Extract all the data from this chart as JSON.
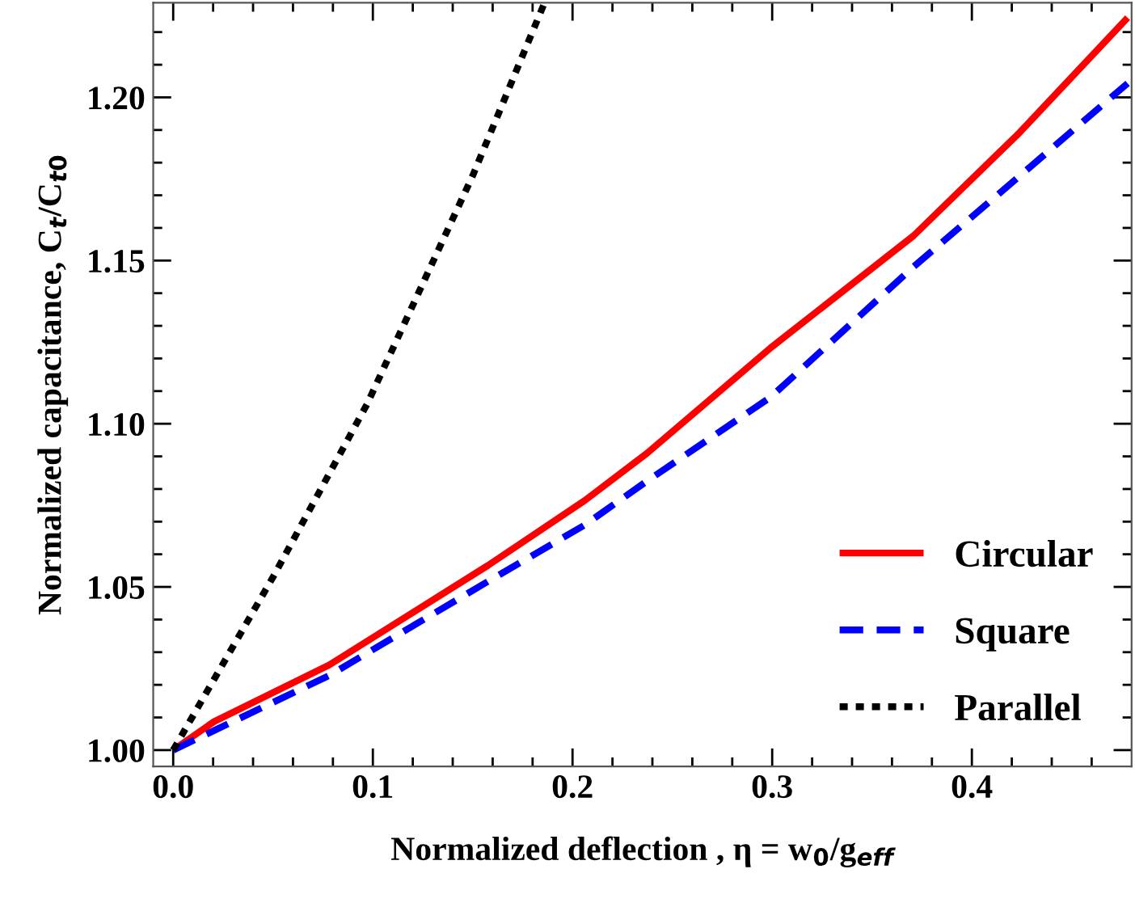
{
  "chart_data": {
    "type": "line",
    "xlabel": "Normalized deflection , η = w$_{0}$/g$_{eff}$",
    "ylabel": "Normalized capacitance, C$_{t}$/C$_{t0}$",
    "xlim": [
      -0.01,
      0.48
    ],
    "ylim": [
      0.995,
      1.229
    ],
    "xticks": [
      {
        "value": 0.0,
        "label": "0.0"
      },
      {
        "value": 0.1,
        "label": "0.1"
      },
      {
        "value": 0.2,
        "label": "0.2"
      },
      {
        "value": 0.3,
        "label": "0.3"
      },
      {
        "value": 0.4,
        "label": "0.4"
      },
      {
        "value": 0.02,
        "label": null
      },
      {
        "value": 0.04,
        "label": null
      },
      {
        "value": 0.06,
        "label": null
      },
      {
        "value": 0.08,
        "label": null
      },
      {
        "value": 0.12,
        "label": null
      },
      {
        "value": 0.14,
        "label": null
      },
      {
        "value": 0.16,
        "label": null
      },
      {
        "value": 0.18,
        "label": null
      },
      {
        "value": 0.22,
        "label": null
      },
      {
        "value": 0.24,
        "label": null
      },
      {
        "value": 0.26,
        "label": null
      },
      {
        "value": 0.28,
        "label": null
      },
      {
        "value": 0.32,
        "label": null
      },
      {
        "value": 0.34,
        "label": null
      },
      {
        "value": 0.36,
        "label": null
      },
      {
        "value": 0.38,
        "label": null
      },
      {
        "value": 0.42,
        "label": null
      },
      {
        "value": 0.44,
        "label": null
      },
      {
        "value": 0.46,
        "label": null
      }
    ],
    "yticks": [
      {
        "value": 1.0,
        "label": "1.00"
      },
      {
        "value": 1.05,
        "label": "1.05"
      },
      {
        "value": 1.1,
        "label": "1.10"
      },
      {
        "value": 1.15,
        "label": "1.15"
      },
      {
        "value": 1.2,
        "label": "1.20"
      },
      {
        "value": 1.01,
        "label": null
      },
      {
        "value": 1.02,
        "label": null
      },
      {
        "value": 1.03,
        "label": null
      },
      {
        "value": 1.04,
        "label": null
      },
      {
        "value": 1.06,
        "label": null
      },
      {
        "value": 1.07,
        "label": null
      },
      {
        "value": 1.08,
        "label": null
      },
      {
        "value": 1.09,
        "label": null
      },
      {
        "value": 1.11,
        "label": null
      },
      {
        "value": 1.12,
        "label": null
      },
      {
        "value": 1.13,
        "label": null
      },
      {
        "value": 1.14,
        "label": null
      },
      {
        "value": 1.16,
        "label": null
      },
      {
        "value": 1.17,
        "label": null
      },
      {
        "value": 1.18,
        "label": null
      },
      {
        "value": 1.19,
        "label": null
      },
      {
        "value": 1.21,
        "label": null
      },
      {
        "value": 1.22,
        "label": null
      }
    ],
    "grid": false,
    "legend": "bottom right",
    "series": [
      {
        "name": "Circular",
        "color": "#ff0000",
        "line_style": "solid",
        "x": [
          0,
          0.0204,
          0.0782,
          0.1577,
          0.2062,
          0.2372,
          0.2993,
          0.3708,
          0.4237,
          0.478
        ],
        "values": [
          1.0,
          1.0087,
          1.0261,
          1.0566,
          1.0765,
          1.0909,
          1.1233,
          1.1576,
          1.1891,
          1.2244
        ]
      },
      {
        "name": "Square",
        "color": "#0000ff",
        "line_style": "dashed",
        "x": [
          0,
          0.078,
          0.1577,
          0.2062,
          0.2372,
          0.2993,
          0.3708,
          0.4237,
          0.478
        ],
        "values": [
          1.0,
          1.0228,
          1.0517,
          1.069,
          1.0824,
          1.1082,
          1.1481,
          1.1758,
          1.2043
        ]
      },
      {
        "name": "Parallel",
        "color": "#000000",
        "line_style": "dotted",
        "x": [
          0,
          0.05,
          0.0971,
          0.15,
          0.186
        ],
        "values": [
          1.0,
          1.053,
          1.106,
          1.176,
          1.229
        ]
      }
    ]
  }
}
